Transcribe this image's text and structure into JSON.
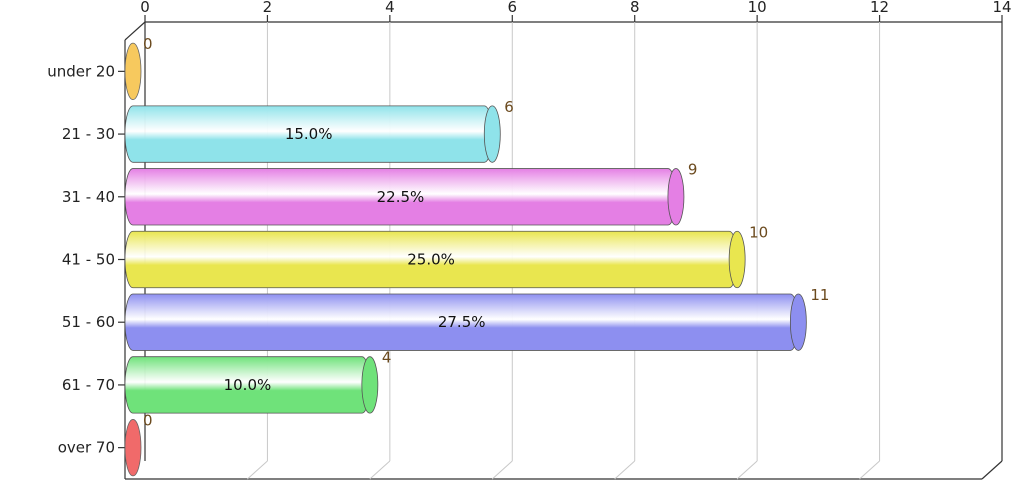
{
  "chart_data": {
    "type": "bar",
    "orientation": "horizontal",
    "style": "3d-cylinder",
    "categories": [
      "under 20",
      "21 - 30",
      "31 - 40",
      "41 - 50",
      "51 - 60",
      "61 - 70",
      "over 70"
    ],
    "values": [
      0,
      6,
      9,
      10,
      11,
      4,
      0
    ],
    "percent_labels": [
      "",
      "15.0%",
      "22.5%",
      "25.0%",
      "27.5%",
      "10.0%",
      ""
    ],
    "value_labels": [
      "0",
      "6",
      "9",
      "10",
      "11",
      "4",
      "0"
    ],
    "x_ticks": [
      "0",
      "2",
      "4",
      "6",
      "8",
      "10",
      "12",
      "14"
    ],
    "xlim": [
      0,
      14
    ],
    "axis_position": "top",
    "grid": true,
    "legend": "none",
    "colors": [
      "#f7c95e",
      "#8fe3ea",
      "#e47fe4",
      "#e9e64f",
      "#8d8ff0",
      "#6fe27a",
      "#f06a6a"
    ]
  }
}
